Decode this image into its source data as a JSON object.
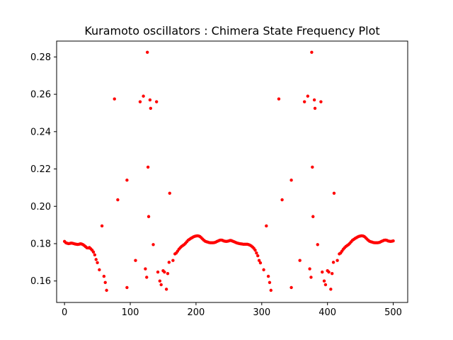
{
  "chart_data": {
    "type": "scatter",
    "title": "Kuramoto  oscillators : Chimera State Frequency Plot",
    "xlabel": "",
    "ylabel": "",
    "xlim": [
      -12,
      522
    ],
    "ylim": [
      0.1485,
      0.2885
    ],
    "x_ticks": [
      0,
      100,
      200,
      300,
      400,
      500
    ],
    "y_ticks": [
      0.16,
      0.18,
      0.2,
      0.22,
      0.24,
      0.26,
      0.28
    ],
    "y_tick_labels": [
      "0.16",
      "0.18",
      "0.20",
      "0.22",
      "0.24",
      "0.26",
      "0.28"
    ],
    "grid": false,
    "marker_color": "#ff0000",
    "series": [
      {
        "points": [
          [
            0,
            0.1812
          ],
          [
            2,
            0.1805
          ],
          [
            4,
            0.1802
          ],
          [
            6,
            0.18
          ],
          [
            8,
            0.1801
          ],
          [
            10,
            0.1803
          ],
          [
            12,
            0.1802
          ],
          [
            14,
            0.18
          ],
          [
            16,
            0.1798
          ],
          [
            18,
            0.1797
          ],
          [
            20,
            0.1796
          ],
          [
            22,
            0.1797
          ],
          [
            24,
            0.1799
          ],
          [
            26,
            0.1798
          ],
          [
            28,
            0.1795
          ],
          [
            30,
            0.179
          ],
          [
            32,
            0.1784
          ],
          [
            34,
            0.1778
          ],
          [
            36,
            0.1777
          ],
          [
            38,
            0.1779
          ],
          [
            40,
            0.1772
          ],
          [
            42,
            0.1765
          ],
          [
            44,
            0.1755
          ],
          [
            46,
            0.174
          ],
          [
            48,
            0.1715
          ],
          [
            50,
            0.1698
          ],
          [
            53,
            0.166
          ],
          [
            57,
            0.1895
          ],
          [
            60,
            0.1625
          ],
          [
            62,
            0.1592
          ],
          [
            64,
            0.155
          ],
          [
            76,
            0.2575
          ],
          [
            81,
            0.2035
          ],
          [
            95,
            0.214
          ],
          [
            95,
            0.1565
          ],
          [
            108,
            0.171
          ],
          [
            115,
            0.256
          ],
          [
            120,
            0.259
          ],
          [
            123,
            0.1665
          ],
          [
            125,
            0.162
          ],
          [
            126,
            0.2825
          ],
          [
            127,
            0.221
          ],
          [
            128,
            0.1945
          ],
          [
            130,
            0.257
          ],
          [
            131,
            0.2525
          ],
          [
            135,
            0.1795
          ],
          [
            140,
            0.256
          ],
          [
            142,
            0.1648
          ],
          [
            145,
            0.16
          ],
          [
            147,
            0.158
          ],
          [
            150,
            0.1655
          ],
          [
            152,
            0.1648
          ],
          [
            155,
            0.1556
          ],
          [
            157,
            0.164
          ],
          [
            159,
            0.17
          ],
          [
            160,
            0.207
          ],
          [
            165,
            0.171
          ],
          [
            168,
            0.1745
          ],
          [
            170,
            0.175
          ],
          [
            172,
            0.176
          ],
          [
            174,
            0.177
          ],
          [
            176,
            0.1778
          ],
          [
            178,
            0.1785
          ],
          [
            180,
            0.179
          ],
          [
            182,
            0.1795
          ],
          [
            184,
            0.1802
          ],
          [
            186,
            0.181
          ],
          [
            188,
            0.1818
          ],
          [
            190,
            0.1823
          ],
          [
            192,
            0.1828
          ],
          [
            194,
            0.1832
          ],
          [
            196,
            0.1836
          ],
          [
            198,
            0.1839
          ],
          [
            200,
            0.1841
          ],
          [
            202,
            0.1842
          ],
          [
            204,
            0.1841
          ],
          [
            206,
            0.1838
          ],
          [
            208,
            0.1832
          ],
          [
            210,
            0.1825
          ],
          [
            212,
            0.1818
          ],
          [
            214,
            0.1813
          ],
          [
            216,
            0.181
          ],
          [
            218,
            0.1808
          ],
          [
            220,
            0.1806
          ],
          [
            222,
            0.1805
          ],
          [
            224,
            0.1805
          ],
          [
            226,
            0.1805
          ],
          [
            228,
            0.1806
          ],
          [
            230,
            0.1808
          ],
          [
            232,
            0.1812
          ],
          [
            234,
            0.1815
          ],
          [
            236,
            0.1818
          ],
          [
            238,
            0.1819
          ],
          [
            240,
            0.1818
          ],
          [
            242,
            0.1815
          ],
          [
            244,
            0.1813
          ],
          [
            246,
            0.1812
          ],
          [
            248,
            0.1813
          ],
          [
            250,
            0.1815
          ],
          [
            252,
            0.1817
          ],
          [
            254,
            0.1816
          ],
          [
            256,
            0.1813
          ],
          [
            258,
            0.181
          ],
          [
            260,
            0.1807
          ],
          [
            262,
            0.1804
          ],
          [
            264,
            0.1802
          ],
          [
            266,
            0.18
          ],
          [
            268,
            0.1799
          ],
          [
            270,
            0.1798
          ],
          [
            272,
            0.1797
          ],
          [
            274,
            0.1797
          ],
          [
            276,
            0.1797
          ],
          [
            278,
            0.1797
          ],
          [
            280,
            0.1795
          ],
          [
            282,
            0.1792
          ],
          [
            284,
            0.1788
          ],
          [
            286,
            0.1782
          ],
          [
            288,
            0.1775
          ],
          [
            290,
            0.1765
          ],
          [
            292,
            0.175
          ],
          [
            294,
            0.1735
          ],
          [
            296,
            0.171
          ],
          [
            298,
            0.1697
          ],
          [
            303,
            0.166
          ],
          [
            307,
            0.1895
          ],
          [
            310,
            0.1625
          ],
          [
            312,
            0.1592
          ],
          [
            314,
            0.155
          ],
          [
            326,
            0.2575
          ],
          [
            331,
            0.2035
          ],
          [
            345,
            0.214
          ],
          [
            345,
            0.1565
          ],
          [
            358,
            0.171
          ],
          [
            365,
            0.256
          ],
          [
            370,
            0.259
          ],
          [
            373,
            0.1665
          ],
          [
            375,
            0.162
          ],
          [
            376,
            0.2825
          ],
          [
            377,
            0.221
          ],
          [
            378,
            0.1945
          ],
          [
            380,
            0.257
          ],
          [
            381,
            0.2525
          ],
          [
            385,
            0.1795
          ],
          [
            390,
            0.256
          ],
          [
            392,
            0.1648
          ],
          [
            395,
            0.16
          ],
          [
            397,
            0.158
          ],
          [
            400,
            0.1655
          ],
          [
            402,
            0.1648
          ],
          [
            405,
            0.1556
          ],
          [
            407,
            0.164
          ],
          [
            409,
            0.17
          ],
          [
            410,
            0.207
          ],
          [
            415,
            0.171
          ],
          [
            418,
            0.1745
          ],
          [
            420,
            0.175
          ],
          [
            422,
            0.176
          ],
          [
            424,
            0.177
          ],
          [
            426,
            0.1778
          ],
          [
            428,
            0.1785
          ],
          [
            430,
            0.179
          ],
          [
            432,
            0.1795
          ],
          [
            434,
            0.1802
          ],
          [
            436,
            0.181
          ],
          [
            438,
            0.1818
          ],
          [
            440,
            0.1823
          ],
          [
            442,
            0.1828
          ],
          [
            444,
            0.1832
          ],
          [
            446,
            0.1836
          ],
          [
            448,
            0.1839
          ],
          [
            450,
            0.1841
          ],
          [
            452,
            0.1842
          ],
          [
            454,
            0.1841
          ],
          [
            456,
            0.1838
          ],
          [
            458,
            0.1832
          ],
          [
            460,
            0.1825
          ],
          [
            462,
            0.1818
          ],
          [
            464,
            0.1813
          ],
          [
            466,
            0.181
          ],
          [
            468,
            0.1808
          ],
          [
            470,
            0.1806
          ],
          [
            472,
            0.1805
          ],
          [
            474,
            0.1805
          ],
          [
            476,
            0.1805
          ],
          [
            478,
            0.1806
          ],
          [
            480,
            0.1808
          ],
          [
            482,
            0.1812
          ],
          [
            484,
            0.1815
          ],
          [
            486,
            0.1818
          ],
          [
            488,
            0.1819
          ],
          [
            490,
            0.1818
          ],
          [
            492,
            0.1815
          ],
          [
            494,
            0.1813
          ],
          [
            496,
            0.1812
          ],
          [
            498,
            0.1813
          ],
          [
            500,
            0.1815
          ]
        ]
      }
    ]
  }
}
